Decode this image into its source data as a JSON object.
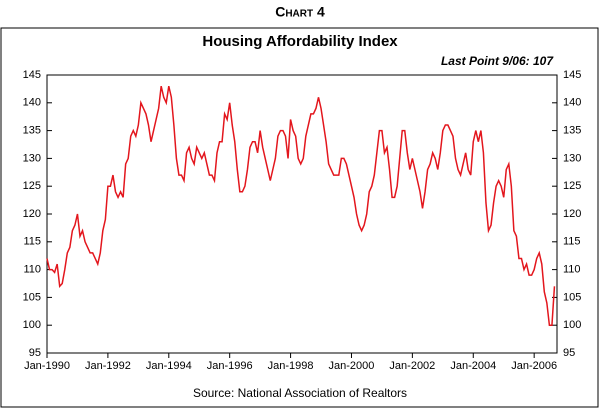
{
  "chart_data": {
    "type": "line",
    "title": "Chart 4",
    "subtitle": "Housing Affordability Index",
    "annotation": "Last Point 9/06: 107",
    "source": "Source:  National Association of Realtors",
    "x": [
      "1990-01",
      "1990-02",
      "1990-03",
      "1990-04",
      "1990-05",
      "1990-06",
      "1990-07",
      "1990-08",
      "1990-09",
      "1990-10",
      "1990-11",
      "1990-12",
      "1991-01",
      "1991-02",
      "1991-03",
      "1991-04",
      "1991-05",
      "1991-06",
      "1991-07",
      "1991-08",
      "1991-09",
      "1991-10",
      "1991-11",
      "1991-12",
      "1992-01",
      "1992-02",
      "1992-03",
      "1992-04",
      "1992-05",
      "1992-06",
      "1992-07",
      "1992-08",
      "1992-09",
      "1992-10",
      "1992-11",
      "1992-12",
      "1993-01",
      "1993-02",
      "1993-03",
      "1993-04",
      "1993-05",
      "1993-06",
      "1993-07",
      "1993-08",
      "1993-09",
      "1993-10",
      "1993-11",
      "1993-12",
      "1994-01",
      "1994-02",
      "1994-03",
      "1994-04",
      "1994-05",
      "1994-06",
      "1994-07",
      "1994-08",
      "1994-09",
      "1994-10",
      "1994-11",
      "1994-12",
      "1995-01",
      "1995-02",
      "1995-03",
      "1995-04",
      "1995-05",
      "1995-06",
      "1995-07",
      "1995-08",
      "1995-09",
      "1995-10",
      "1995-11",
      "1995-12",
      "1996-01",
      "1996-02",
      "1996-03",
      "1996-04",
      "1996-05",
      "1996-06",
      "1996-07",
      "1996-08",
      "1996-09",
      "1996-10",
      "1996-11",
      "1996-12",
      "1997-01",
      "1997-02",
      "1997-03",
      "1997-04",
      "1997-05",
      "1997-06",
      "1997-07",
      "1997-08",
      "1997-09",
      "1997-10",
      "1997-11",
      "1997-12",
      "1998-01",
      "1998-02",
      "1998-03",
      "1998-04",
      "1998-05",
      "1998-06",
      "1998-07",
      "1998-08",
      "1998-09",
      "1998-10",
      "1998-11",
      "1998-12",
      "1999-01",
      "1999-02",
      "1999-03",
      "1999-04",
      "1999-05",
      "1999-06",
      "1999-07",
      "1999-08",
      "1999-09",
      "1999-10",
      "1999-11",
      "1999-12",
      "2000-01",
      "2000-02",
      "2000-03",
      "2000-04",
      "2000-05",
      "2000-06",
      "2000-07",
      "2000-08",
      "2000-09",
      "2000-10",
      "2000-11",
      "2000-12",
      "2001-01",
      "2001-02",
      "2001-03",
      "2001-04",
      "2001-05",
      "2001-06",
      "2001-07",
      "2001-08",
      "2001-09",
      "2001-10",
      "2001-11",
      "2001-12",
      "2002-01",
      "2002-02",
      "2002-03",
      "2002-04",
      "2002-05",
      "2002-06",
      "2002-07",
      "2002-08",
      "2002-09",
      "2002-10",
      "2002-11",
      "2002-12",
      "2003-01",
      "2003-02",
      "2003-03",
      "2003-04",
      "2003-05",
      "2003-06",
      "2003-07",
      "2003-08",
      "2003-09",
      "2003-10",
      "2003-11",
      "2003-12",
      "2004-01",
      "2004-02",
      "2004-03",
      "2004-04",
      "2004-05",
      "2004-06",
      "2004-07",
      "2004-08",
      "2004-09",
      "2004-10",
      "2004-11",
      "2004-12",
      "2005-01",
      "2005-02",
      "2005-03",
      "2005-04",
      "2005-05",
      "2005-06",
      "2005-07",
      "2005-08",
      "2005-09",
      "2005-10",
      "2005-11",
      "2005-12",
      "2006-01",
      "2006-02",
      "2006-03",
      "2006-04",
      "2006-05",
      "2006-06",
      "2006-07",
      "2006-08",
      "2006-09"
    ],
    "series": [
      {
        "name": "Housing Affordability Index",
        "color": "#e3161d",
        "values": [
          112,
          110,
          110,
          109.5,
          111,
          107,
          107.5,
          110,
          113,
          114,
          117,
          118,
          120,
          116,
          117,
          115,
          114,
          113,
          113,
          112,
          111,
          113,
          117,
          119,
          125,
          125,
          127,
          124,
          123,
          124,
          123,
          129,
          130,
          134,
          135,
          134,
          136,
          140,
          139,
          138,
          136,
          133,
          135,
          137,
          139,
          143,
          141,
          140,
          143,
          141,
          136,
          130,
          127,
          127,
          126,
          131,
          132,
          130,
          129,
          132,
          131,
          130,
          131,
          129,
          127,
          127,
          126,
          131,
          133,
          133,
          138,
          137,
          140,
          136,
          133,
          128,
          124,
          124,
          125,
          128,
          132,
          133,
          133,
          131,
          135,
          132,
          130,
          128,
          126,
          128,
          130,
          134,
          135,
          135,
          134,
          130,
          137,
          135,
          134,
          130,
          129,
          130,
          134,
          136,
          138,
          138,
          139,
          141,
          139,
          136,
          133,
          129,
          128,
          127,
          127,
          127,
          130,
          130,
          129,
          127,
          125,
          123,
          120,
          118,
          117,
          118,
          120,
          124,
          125,
          127,
          131,
          135,
          135,
          131,
          132,
          128,
          123,
          123,
          125,
          130,
          135,
          135,
          131,
          128,
          130,
          128,
          126,
          124,
          121,
          124,
          128,
          129,
          131,
          130,
          128,
          131,
          135,
          136,
          136,
          135,
          134,
          130,
          128,
          127,
          129,
          131,
          128,
          127,
          133,
          135,
          133,
          135,
          131,
          122,
          117,
          118,
          122,
          125,
          126,
          125,
          123,
          128,
          129,
          125,
          117,
          116,
          112,
          112,
          110,
          111,
          109,
          109,
          110,
          112,
          113,
          111,
          106,
          104,
          100,
          100,
          107
        ]
      }
    ],
    "xlim": [
      "1990-01",
      "2006-09"
    ],
    "xticks": [
      {
        "value": "1990-01",
        "label": "Jan-1990"
      },
      {
        "value": "1992-01",
        "label": "Jan-1992"
      },
      {
        "value": "1994-01",
        "label": "Jan-1994"
      },
      {
        "value": "1996-01",
        "label": "Jan-1996"
      },
      {
        "value": "1998-01",
        "label": "Jan-1998"
      },
      {
        "value": "2000-01",
        "label": "Jan-2000"
      },
      {
        "value": "2002-01",
        "label": "Jan-2002"
      },
      {
        "value": "2004-01",
        "label": "Jan-2004"
      },
      {
        "value": "2006-01",
        "label": "Jan-2006"
      }
    ],
    "ylim": [
      95,
      145
    ],
    "yticks": [
      95,
      100,
      105,
      110,
      115,
      120,
      125,
      130,
      135,
      140,
      145
    ],
    "y2lim": [
      95,
      145
    ],
    "y2ticks": [
      95,
      100,
      105,
      110,
      115,
      120,
      125,
      130,
      135,
      140,
      145
    ]
  }
}
